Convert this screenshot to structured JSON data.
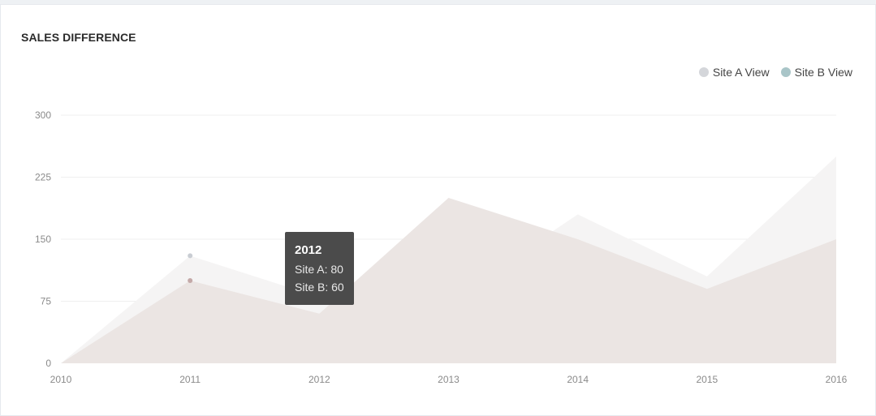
{
  "card": {
    "title": "SALES DIFFERENCE"
  },
  "chart_data": {
    "type": "area",
    "x": [
      "2010",
      "2011",
      "2012",
      "2013",
      "2014",
      "2015",
      "2016"
    ],
    "series": [
      {
        "name": "Site A View",
        "values": [
          0,
          130,
          80,
          75,
          180,
          105,
          250
        ],
        "color": "#d4d6da"
      },
      {
        "name": "Site B View",
        "values": [
          0,
          100,
          60,
          200,
          150,
          90,
          150
        ],
        "color": "#a9c5c8"
      }
    ],
    "yticks": [
      "0",
      "75",
      "150",
      "225",
      "300"
    ],
    "ylim": [
      0,
      300
    ],
    "grid": true,
    "legend_position": "top-right",
    "fill_colors": {
      "site_a": "#f5f4f4",
      "site_b": "#ebe5e3"
    },
    "marker_colors": {
      "site_a": "#c9cdd3",
      "site_b": "#c4a9a8"
    }
  },
  "tooltip": {
    "title": "2012",
    "line_a": "Site A: 80",
    "line_b": "Site B: 60"
  }
}
